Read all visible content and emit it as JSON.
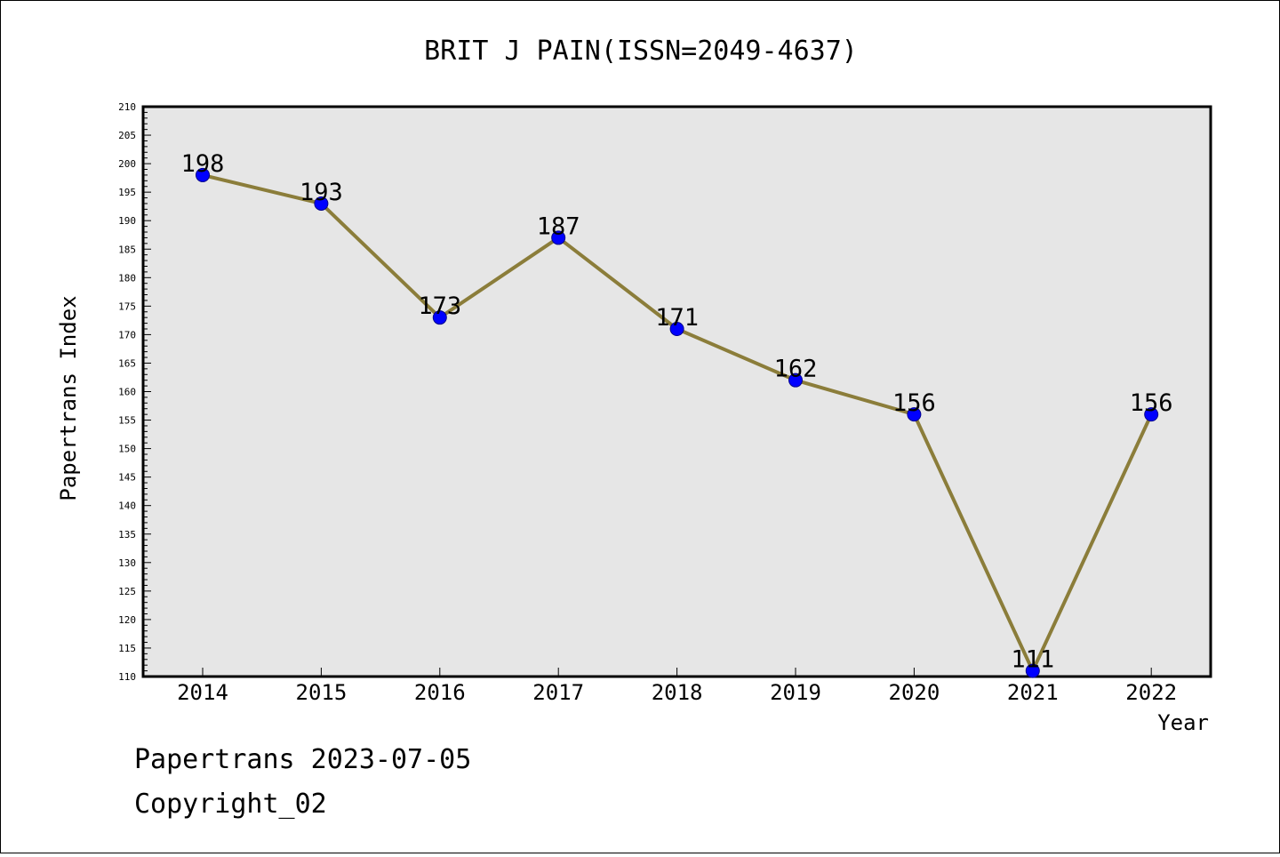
{
  "chart_data": {
    "type": "line",
    "title": "BRIT J PAIN(ISSN=2049-4637)",
    "xlabel": "Year",
    "ylabel": "Papertrans Index",
    "categories": [
      "2014",
      "2015",
      "2016",
      "2017",
      "2018",
      "2019",
      "2020",
      "2021",
      "2022"
    ],
    "series": [
      {
        "values": [
          198,
          193,
          173,
          187,
          171,
          162,
          156,
          111,
          156
        ]
      }
    ],
    "data_labels": [
      "198",
      "193",
      "173",
      "187",
      "171",
      "162",
      "156",
      "111",
      "156"
    ],
    "ylim": [
      110,
      210
    ],
    "ytick_step": 5,
    "grid": false,
    "line_color": "#8b7d3a",
    "marker_color": "#0000ff",
    "plot_background": "#e6e6e6"
  },
  "footer": {
    "line1": "Papertrans 2023-07-05",
    "line2": "Copyright_02"
  }
}
